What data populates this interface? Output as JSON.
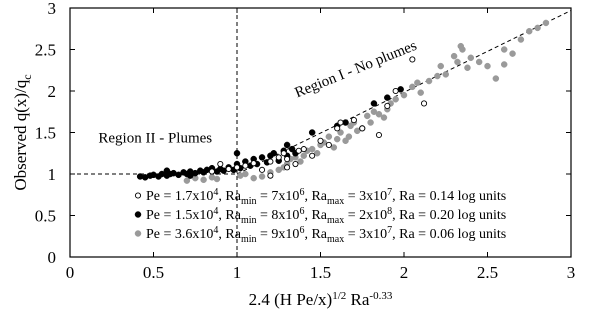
{
  "chart_data": {
    "type": "scatter",
    "xlabel": {
      "main": "2.4 (H Pe/x)",
      "sup1": "1/2",
      "mid": " Ra",
      "sup2": "-0.33"
    },
    "ylabel": {
      "main": "Observed q(x)/q",
      "sub": "c"
    },
    "xlim": [
      0,
      3
    ],
    "ylim": [
      0,
      3
    ],
    "xticks": [
      "0",
      "0.5",
      "1",
      "1.5",
      "2",
      "2.5",
      "3"
    ],
    "yticks": [
      "0",
      "0.5",
      "1",
      "1.5",
      "2",
      "2.5",
      "3"
    ],
    "grid": false,
    "legend_position": "lower-right",
    "annotations": [
      {
        "text": "Region II - Plumes",
        "x": 0.17,
        "y": 1.38,
        "rotation": 0
      },
      {
        "text": "Region I - No plumes",
        "x": 1.36,
        "y": 1.92,
        "rotation": -22
      }
    ],
    "reference_lines": [
      {
        "name": "plume-regime-level",
        "points": [
          [
            0,
            1
          ],
          [
            1,
            1
          ]
        ]
      },
      {
        "name": "regime-boundary",
        "points": [
          [
            1,
            0
          ],
          [
            1,
            3
          ]
        ]
      },
      {
        "name": "no-plume-trend",
        "points": [
          [
            1,
            1
          ],
          [
            3,
            2.97
          ]
        ]
      }
    ],
    "colors": {
      "series1": "#000000",
      "series2": "#000000",
      "series3": "#9a9a9a"
    },
    "legend_entries": [
      [
        "Pe = 1.7x10",
        "4",
        ",  Ra",
        "min",
        " = 7x10",
        "6",
        ",  Ra",
        "max",
        " = 3x10",
        "7",
        ",   Ra = 0.14 log units"
      ],
      [
        "Pe = 1.5x10",
        "4",
        ",  Ra",
        "min",
        " = 8x10",
        "6",
        ",  Ra",
        "max",
        " = 2x10",
        "8",
        ",   Ra = 0.20 log units"
      ],
      [
        "Pe = 3.6x10",
        "4",
        ",  Ra",
        "min",
        " = 9x10",
        "6",
        ",  Ra",
        "max",
        " = 3x10",
        "7",
        ",   Ra = 0.06 log units"
      ]
    ],
    "series": [
      {
        "marker": "open-circle",
        "points": [
          [
            0.85,
            1.03
          ],
          [
            0.9,
            1.12
          ],
          [
            0.95,
            1.06
          ],
          [
            1.0,
            1.08
          ],
          [
            1.05,
            1.1
          ],
          [
            1.1,
            1.13
          ],
          [
            1.15,
            1.05
          ],
          [
            1.2,
            1.15
          ],
          [
            1.25,
            1.2
          ],
          [
            1.28,
            1.25
          ],
          [
            1.3,
            1.18
          ],
          [
            1.35,
            1.12
          ],
          [
            1.4,
            1.3
          ],
          [
            1.45,
            1.22
          ],
          [
            1.5,
            1.4
          ],
          [
            1.55,
            1.35
          ],
          [
            1.6,
            1.55
          ],
          [
            1.62,
            1.62
          ],
          [
            1.7,
            1.65
          ],
          [
            1.75,
            1.55
          ],
          [
            1.85,
            1.47
          ],
          [
            1.9,
            1.82
          ],
          [
            1.95,
            2.0
          ],
          [
            2.12,
            1.85
          ],
          [
            2.05,
            2.38
          ],
          [
            1.2,
            0.98
          ],
          [
            1.3,
            1.08
          ],
          [
            1.37,
            1.28
          ]
        ]
      },
      {
        "marker": "filled-circle",
        "points": [
          [
            0.42,
            0.97
          ],
          [
            0.45,
            0.96
          ],
          [
            0.48,
            0.98
          ],
          [
            0.5,
            0.99
          ],
          [
            0.53,
            0.97
          ],
          [
            0.55,
            1.0
          ],
          [
            0.58,
            0.98
          ],
          [
            0.6,
            1.0
          ],
          [
            0.62,
            1.01
          ],
          [
            0.65,
            0.99
          ],
          [
            0.68,
            1.02
          ],
          [
            0.7,
            1.0
          ],
          [
            0.72,
            1.03
          ],
          [
            0.75,
            1.01
          ],
          [
            0.78,
            1.04
          ],
          [
            0.8,
            1.02
          ],
          [
            0.82,
            1.05
          ],
          [
            0.85,
            1.07
          ],
          [
            0.88,
            1.03
          ],
          [
            0.9,
            1.06
          ],
          [
            0.92,
            1.04
          ],
          [
            0.95,
            1.08
          ],
          [
            0.98,
            1.05
          ],
          [
            1.0,
            1.12
          ],
          [
            1.02,
            1.07
          ],
          [
            1.05,
            1.15
          ],
          [
            1.08,
            1.1
          ],
          [
            1.1,
            1.18
          ],
          [
            1.12,
            1.12
          ],
          [
            1.15,
            1.2
          ],
          [
            1.18,
            1.14
          ],
          [
            1.2,
            1.22
          ],
          [
            1.22,
            1.25
          ],
          [
            1.25,
            1.16
          ],
          [
            1.28,
            1.28
          ],
          [
            1.3,
            1.22
          ],
          [
            1.33,
            1.3
          ],
          [
            1.35,
            1.25
          ],
          [
            1.0,
            1.25
          ],
          [
            1.45,
            1.5
          ],
          [
            1.6,
            1.58
          ],
          [
            1.65,
            1.62
          ],
          [
            1.82,
            1.85
          ],
          [
            1.9,
            1.92
          ],
          [
            1.98,
            2.02
          ],
          [
            1.3,
            1.35
          ],
          [
            0.58,
            1.04
          ],
          [
            0.72,
            0.98
          ]
        ]
      },
      {
        "marker": "filled-circle",
        "points": [
          [
            0.7,
            0.92
          ],
          [
            0.75,
            0.95
          ],
          [
            0.8,
            0.93
          ],
          [
            0.85,
            0.96
          ],
          [
            0.88,
            0.94
          ],
          [
            1.02,
            0.98
          ],
          [
            1.05,
            1.0
          ],
          [
            1.1,
            0.95
          ],
          [
            1.15,
            0.97
          ],
          [
            1.2,
            1.02
          ],
          [
            1.25,
            1.05
          ],
          [
            1.28,
            1.08
          ],
          [
            1.3,
            1.12
          ],
          [
            1.32,
            1.18
          ],
          [
            1.35,
            1.2
          ],
          [
            1.38,
            1.15
          ],
          [
            1.4,
            1.22
          ],
          [
            1.42,
            1.28
          ],
          [
            1.45,
            1.3
          ],
          [
            1.48,
            1.25
          ],
          [
            1.5,
            1.35
          ],
          [
            1.52,
            1.38
          ],
          [
            1.55,
            1.45
          ],
          [
            1.58,
            1.32
          ],
          [
            1.6,
            1.42
          ],
          [
            1.62,
            1.5
          ],
          [
            1.65,
            1.4
          ],
          [
            1.68,
            1.58
          ],
          [
            1.7,
            1.62
          ],
          [
            1.72,
            1.52
          ],
          [
            1.75,
            1.55
          ],
          [
            1.78,
            1.7
          ],
          [
            1.8,
            1.62
          ],
          [
            1.82,
            1.75
          ],
          [
            1.85,
            1.72
          ],
          [
            1.88,
            1.68
          ],
          [
            1.9,
            1.78
          ],
          [
            1.92,
            1.85
          ],
          [
            1.95,
            1.9
          ],
          [
            2.0,
            1.95
          ],
          [
            2.05,
            2.05
          ],
          [
            2.08,
            2.1
          ],
          [
            2.1,
            1.98
          ],
          [
            2.15,
            2.12
          ],
          [
            2.2,
            2.18
          ],
          [
            2.22,
            2.3
          ],
          [
            2.25,
            2.2
          ],
          [
            2.3,
            2.42
          ],
          [
            2.32,
            2.35
          ],
          [
            2.35,
            2.5
          ],
          [
            2.38,
            2.28
          ],
          [
            2.4,
            2.4
          ],
          [
            2.45,
            2.35
          ],
          [
            2.5,
            2.3
          ],
          [
            2.55,
            2.15
          ],
          [
            2.6,
            2.5
          ],
          [
            2.65,
            2.45
          ],
          [
            2.7,
            2.62
          ],
          [
            2.75,
            2.72
          ],
          [
            2.8,
            2.76
          ],
          [
            2.85,
            2.82
          ],
          [
            2.6,
            2.32
          ],
          [
            2.34,
            2.54
          ],
          [
            1.67,
            1.45
          ]
        ]
      }
    ]
  }
}
